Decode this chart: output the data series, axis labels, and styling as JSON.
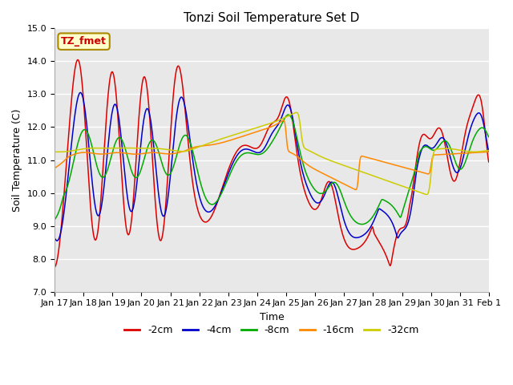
{
  "title": "Tonzi Soil Temperature Set D",
  "xlabel": "Time",
  "ylabel": "Soil Temperature (C)",
  "ylim": [
    7.0,
    15.0
  ],
  "yticks": [
    7.0,
    8.0,
    9.0,
    10.0,
    11.0,
    12.0,
    13.0,
    14.0,
    15.0
  ],
  "xtick_labels": [
    "Jan 17",
    "Jan 18",
    "Jan 19",
    "Jan 20",
    "Jan 21",
    "Jan 22",
    "Jan 23",
    "Jan 24",
    "Jan 25",
    "Jan 26",
    "Jan 27",
    "Jan 28",
    "Jan 29",
    "Jan 30",
    "Jan 31",
    "Feb 1"
  ],
  "legend_label": "TZ_fmet",
  "series_colors": [
    "#dd0000",
    "#0000cc",
    "#00aa00",
    "#ff8800",
    "#cccc00"
  ],
  "series_labels": [
    "-2cm",
    "-4cm",
    "-8cm",
    "-16cm",
    "-32cm"
  ],
  "plot_bg_color": "#e8e8e8",
  "fig_bg_color": "#ffffff",
  "legend_box_facecolor": "#ffffcc",
  "legend_box_edgecolor": "#aa8800",
  "grid_color": "#ffffff",
  "title_fontsize": 11,
  "axis_label_fontsize": 9,
  "tick_fontsize": 8,
  "legend_fontsize": 9
}
